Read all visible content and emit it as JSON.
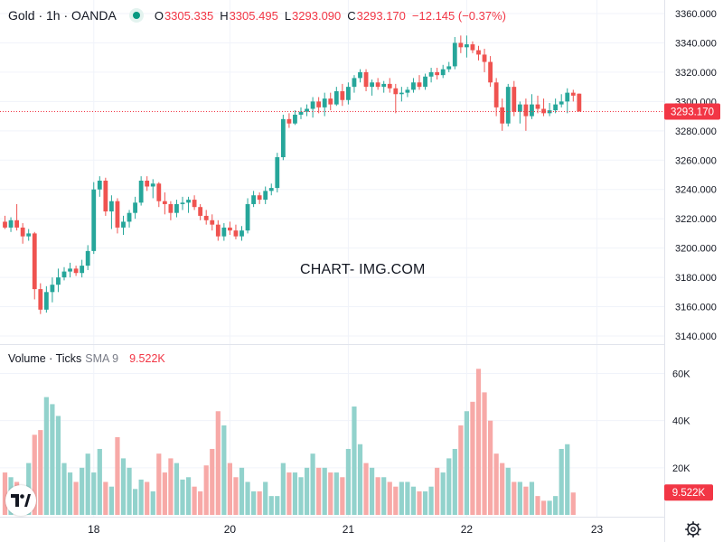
{
  "legend": {
    "symbol": "Gold · 1h · OANDA",
    "open_key": "O",
    "open": "3305.335",
    "high_key": "H",
    "high": "3305.495",
    "low_key": "L",
    "low": "3293.090",
    "close_key": "C",
    "close": "3293.170",
    "change": "−12.145 (−0.37%)"
  },
  "volume_legend": {
    "name": "Volume · Ticks",
    "sma": "SMA 9",
    "value": "9.522K"
  },
  "watermark": "CHART- IMG.COM",
  "colors": {
    "up": "#26a69a",
    "down": "#ef5350",
    "up_vol": "#92d2cc",
    "down_vol": "#f7a9a7",
    "price_line": "#f23645"
  },
  "icons": {
    "logo": "tradingview-logo-icon",
    "settings": "gear-icon"
  },
  "chart_data": [
    {
      "type": "candlestick",
      "price_axis": {
        "ticks": [
          "3360.000",
          "3340.000",
          "3320.000",
          "3300.000",
          "3280.000",
          "3260.000",
          "3240.000",
          "3220.000",
          "3200.000",
          "3180.000",
          "3160.000",
          "3140.000"
        ],
        "range": [
          3130,
          3365
        ]
      },
      "time_axis": {
        "ticks": [
          "18",
          "20",
          "21",
          "22",
          "23"
        ]
      },
      "last_price_label": "3293.170",
      "last_price": 3293.17,
      "candles": [
        [
          3218,
          3222,
          3213,
          3214
        ],
        [
          3214,
          3221,
          3211,
          3219
        ],
        [
          3219,
          3230,
          3212,
          3214
        ],
        [
          3214,
          3217,
          3203,
          3208
        ],
        [
          3208,
          3213,
          3205,
          3210
        ],
        [
          3210,
          3211,
          3165,
          3172
        ],
        [
          3172,
          3176,
          3155,
          3158
        ],
        [
          3158,
          3174,
          3156,
          3170
        ],
        [
          3170,
          3180,
          3163,
          3175
        ],
        [
          3175,
          3186,
          3170,
          3180
        ],
        [
          3180,
          3187,
          3178,
          3184
        ],
        [
          3184,
          3190,
          3180,
          3186
        ],
        [
          3186,
          3188,
          3181,
          3183
        ],
        [
          3183,
          3192,
          3180,
          3188
        ],
        [
          3188,
          3202,
          3185,
          3198
        ],
        [
          3198,
          3245,
          3196,
          3240
        ],
        [
          3240,
          3249,
          3235,
          3246
        ],
        [
          3246,
          3248,
          3222,
          3225
        ],
        [
          3225,
          3236,
          3213,
          3232
        ],
        [
          3232,
          3234,
          3210,
          3214
        ],
        [
          3214,
          3222,
          3209,
          3218
        ],
        [
          3218,
          3226,
          3214,
          3224
        ],
        [
          3224,
          3235,
          3220,
          3231
        ],
        [
          3231,
          3249,
          3229,
          3246
        ],
        [
          3246,
          3249,
          3239,
          3242
        ],
        [
          3242,
          3247,
          3234,
          3244
        ],
        [
          3244,
          3245,
          3228,
          3232
        ],
        [
          3232,
          3238,
          3223,
          3230
        ],
        [
          3230,
          3232,
          3219,
          3224
        ],
        [
          3224,
          3233,
          3221,
          3230
        ],
        [
          3230,
          3235,
          3226,
          3231
        ],
        [
          3231,
          3235,
          3224,
          3233
        ],
        [
          3233,
          3236,
          3226,
          3228
        ],
        [
          3228,
          3230,
          3219,
          3222
        ],
        [
          3222,
          3226,
          3216,
          3219
        ],
        [
          3219,
          3223,
          3212,
          3216
        ],
        [
          3216,
          3219,
          3205,
          3208
        ],
        [
          3208,
          3217,
          3205,
          3214
        ],
        [
          3214,
          3218,
          3209,
          3212
        ],
        [
          3212,
          3216,
          3206,
          3208
        ],
        [
          3208,
          3215,
          3205,
          3212
        ],
        [
          3212,
          3234,
          3210,
          3230
        ],
        [
          3230,
          3239,
          3228,
          3236
        ],
        [
          3236,
          3238,
          3230,
          3233
        ],
        [
          3233,
          3242,
          3230,
          3239
        ],
        [
          3239,
          3244,
          3236,
          3241
        ],
        [
          3241,
          3265,
          3238,
          3262
        ],
        [
          3262,
          3291,
          3260,
          3288
        ],
        [
          3288,
          3292,
          3282,
          3285
        ],
        [
          3285,
          3294,
          3284,
          3291
        ],
        [
          3291,
          3296,
          3288,
          3293
        ],
        [
          3293,
          3298,
          3290,
          3295
        ],
        [
          3295,
          3303,
          3289,
          3300
        ],
        [
          3300,
          3303,
          3292,
          3296
        ],
        [
          3296,
          3306,
          3290,
          3302
        ],
        [
          3302,
          3306,
          3294,
          3298
        ],
        [
          3298,
          3310,
          3297,
          3307
        ],
        [
          3307,
          3312,
          3297,
          3301
        ],
        [
          3301,
          3313,
          3298,
          3310
        ],
        [
          3310,
          3318,
          3306,
          3316
        ],
        [
          3316,
          3322,
          3313,
          3320
        ],
        [
          3320,
          3322,
          3307,
          3310
        ],
        [
          3310,
          3315,
          3304,
          3313
        ],
        [
          3313,
          3316,
          3308,
          3310
        ],
        [
          3310,
          3314,
          3306,
          3312
        ],
        [
          3312,
          3316,
          3306,
          3309
        ],
        [
          3309,
          3312,
          3292,
          3305
        ],
        [
          3305,
          3310,
          3300,
          3306
        ],
        [
          3306,
          3310,
          3303,
          3308
        ],
        [
          3308,
          3316,
          3306,
          3313
        ],
        [
          3313,
          3318,
          3308,
          3310
        ],
        [
          3310,
          3319,
          3308,
          3317
        ],
        [
          3317,
          3323,
          3313,
          3320
        ],
        [
          3320,
          3323,
          3315,
          3318
        ],
        [
          3318,
          3325,
          3316,
          3322
        ],
        [
          3322,
          3327,
          3320,
          3324
        ],
        [
          3324,
          3344,
          3322,
          3340
        ],
        [
          3340,
          3345,
          3333,
          3337
        ],
        [
          3337,
          3345,
          3330,
          3339
        ],
        [
          3339,
          3341,
          3333,
          3335
        ],
        [
          3335,
          3338,
          3328,
          3332
        ],
        [
          3332,
          3336,
          3320,
          3327
        ],
        [
          3327,
          3331,
          3310,
          3313
        ],
        [
          3313,
          3316,
          3290,
          3296
        ],
        [
          3296,
          3302,
          3280,
          3285
        ],
        [
          3285,
          3312,
          3283,
          3310
        ],
        [
          3310,
          3314,
          3290,
          3293
        ],
        [
          3293,
          3300,
          3285,
          3298
        ],
        [
          3298,
          3302,
          3280,
          3290
        ],
        [
          3290,
          3305,
          3288,
          3298
        ],
        [
          3298,
          3304,
          3292,
          3295
        ],
        [
          3295,
          3302,
          3290,
          3292
        ],
        [
          3292,
          3299,
          3290,
          3294
        ],
        [
          3294,
          3302,
          3292,
          3298
        ],
        [
          3298,
          3305,
          3296,
          3300
        ],
        [
          3300,
          3309,
          3292,
          3306
        ],
        [
          3306,
          3308,
          3300,
          3304
        ],
        [
          3305.335,
          3305.495,
          3293.09,
          3293.17
        ]
      ]
    },
    {
      "type": "bar",
      "name": "Volume · Ticks",
      "y_axis": {
        "ticks": [
          "60K",
          "40K",
          "20K"
        ],
        "range": [
          0,
          67
        ]
      },
      "last_value_label": "9.522K",
      "values": [
        18,
        16,
        14,
        12,
        22,
        34,
        36,
        50,
        47,
        42,
        22,
        18,
        14,
        20,
        26,
        18,
        28,
        14,
        12,
        33,
        24,
        20,
        11,
        15,
        14,
        10,
        26,
        18,
        24,
        22,
        15,
        16,
        12,
        10,
        21,
        28,
        44,
        38,
        22,
        16,
        20,
        14,
        10,
        10,
        14,
        8,
        8,
        22,
        18,
        18,
        16,
        20,
        26,
        20,
        20,
        18,
        18,
        16,
        28,
        46,
        30,
        22,
        20,
        16,
        16,
        14,
        12,
        14,
        14,
        12,
        10,
        10,
        12,
        20,
        18,
        24,
        28,
        38,
        44,
        48,
        62,
        52,
        40,
        26,
        22,
        20,
        14,
        14,
        12,
        14,
        8,
        6,
        6,
        8,
        28,
        30,
        9.5
      ]
    }
  ]
}
